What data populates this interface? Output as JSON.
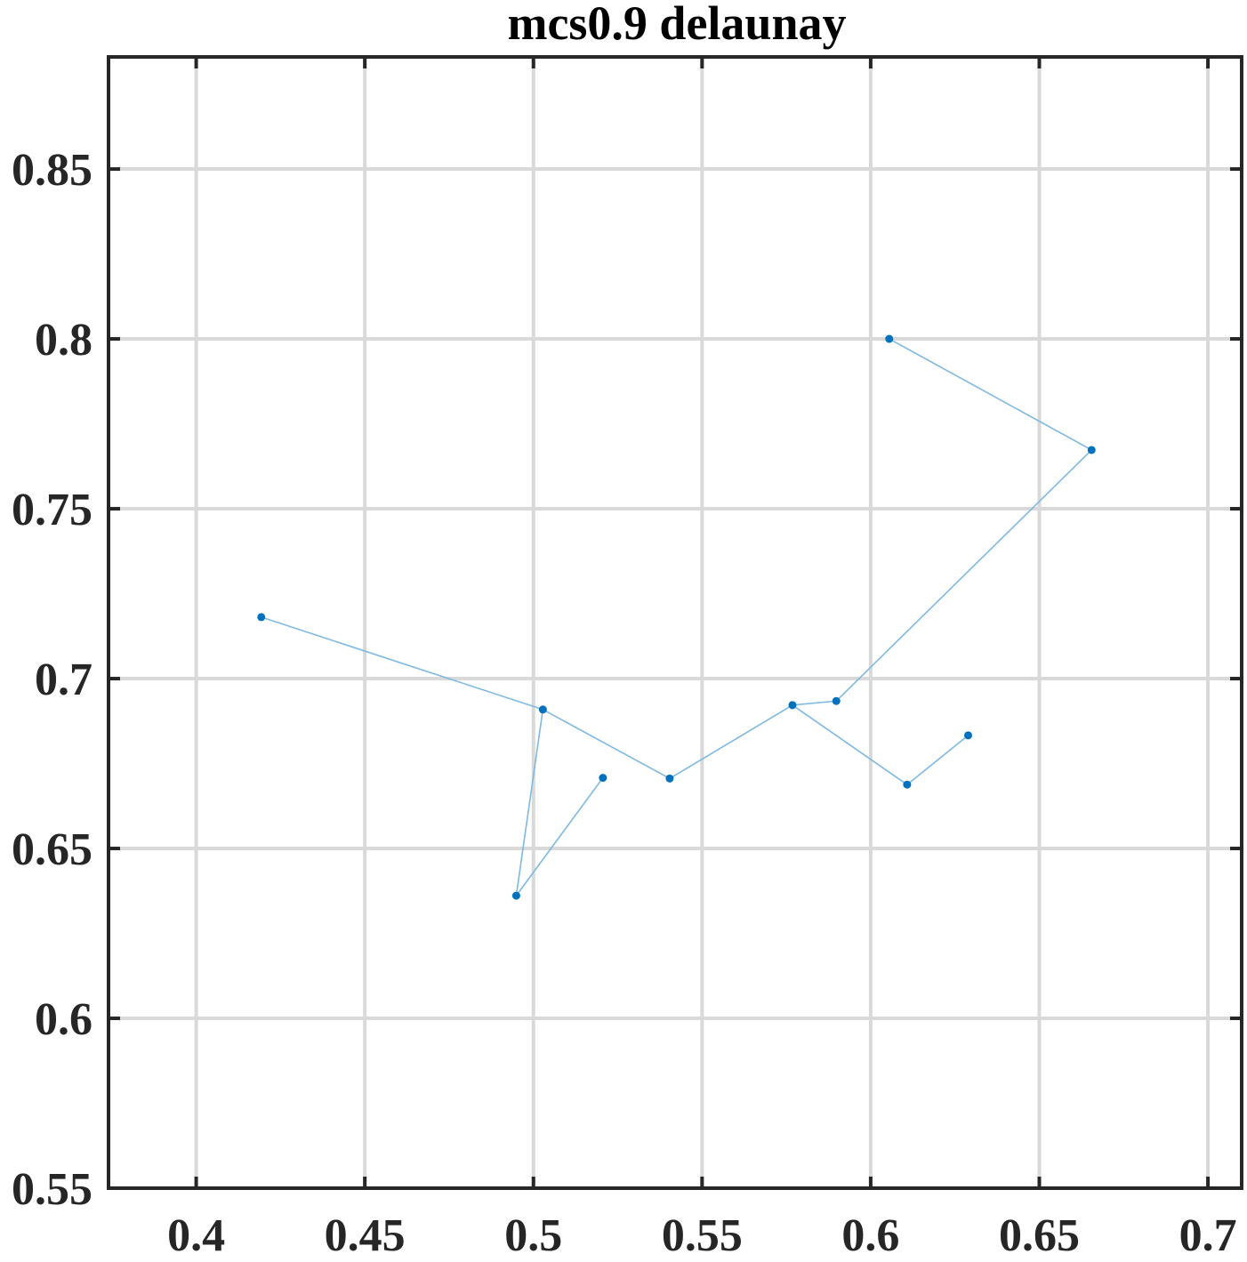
{
  "chart_data": {
    "type": "line",
    "title": "mcs0.9 delaunay",
    "xlabel": "",
    "ylabel": "",
    "xlim": [
      0.374,
      0.71
    ],
    "ylim": [
      0.55,
      0.883
    ],
    "x_ticks": [
      0.4,
      0.45,
      0.5,
      0.55,
      0.6,
      0.65,
      0.7
    ],
    "x_tick_labels": [
      "0.4",
      "0.45",
      "0.5",
      "0.55",
      "0.6",
      "0.65",
      "0.7"
    ],
    "y_ticks": [
      0.55,
      0.6,
      0.65,
      0.7,
      0.75,
      0.8,
      0.85
    ],
    "y_tick_labels": [
      "0.55",
      "0.6",
      "0.65",
      "0.7",
      "0.75",
      "0.8",
      "0.85"
    ],
    "grid": true,
    "colors": {
      "point": "#0072bd",
      "line": "#7fb9e0",
      "axis": "#262626",
      "grid": "#d9d9d9"
    },
    "segments": [
      [
        [
          0.6055,
          0.8
        ],
        [
          0.6655,
          0.7673
        ]
      ],
      [
        [
          0.6655,
          0.7673
        ],
        [
          0.5898,
          0.6934
        ]
      ],
      [
        [
          0.5898,
          0.6934
        ],
        [
          0.5768,
          0.6922
        ]
      ],
      [
        [
          0.5768,
          0.6922
        ],
        [
          0.5404,
          0.6706
        ]
      ],
      [
        [
          0.5404,
          0.6706
        ],
        [
          0.5028,
          0.6909
        ]
      ],
      [
        [
          0.5028,
          0.6909
        ],
        [
          0.4193,
          0.7181
        ]
      ],
      [
        [
          0.5028,
          0.6909
        ],
        [
          0.4949,
          0.6361
        ]
      ],
      [
        [
          0.4949,
          0.6361
        ],
        [
          0.5206,
          0.6708
        ]
      ],
      [
        [
          0.5768,
          0.6922
        ],
        [
          0.6108,
          0.6688
        ]
      ],
      [
        [
          0.6108,
          0.6688
        ],
        [
          0.6289,
          0.6833
        ]
      ]
    ],
    "points": [
      {
        "x": 0.6055,
        "y": 0.8
      },
      {
        "x": 0.6655,
        "y": 0.7673
      },
      {
        "x": 0.4193,
        "y": 0.7181
      },
      {
        "x": 0.5898,
        "y": 0.6934
      },
      {
        "x": 0.5768,
        "y": 0.6922
      },
      {
        "x": 0.5028,
        "y": 0.6909
      },
      {
        "x": 0.6289,
        "y": 0.6833
      },
      {
        "x": 0.5206,
        "y": 0.6708
      },
      {
        "x": 0.5404,
        "y": 0.6706
      },
      {
        "x": 0.6108,
        "y": 0.6688
      },
      {
        "x": 0.4949,
        "y": 0.6361
      }
    ]
  }
}
